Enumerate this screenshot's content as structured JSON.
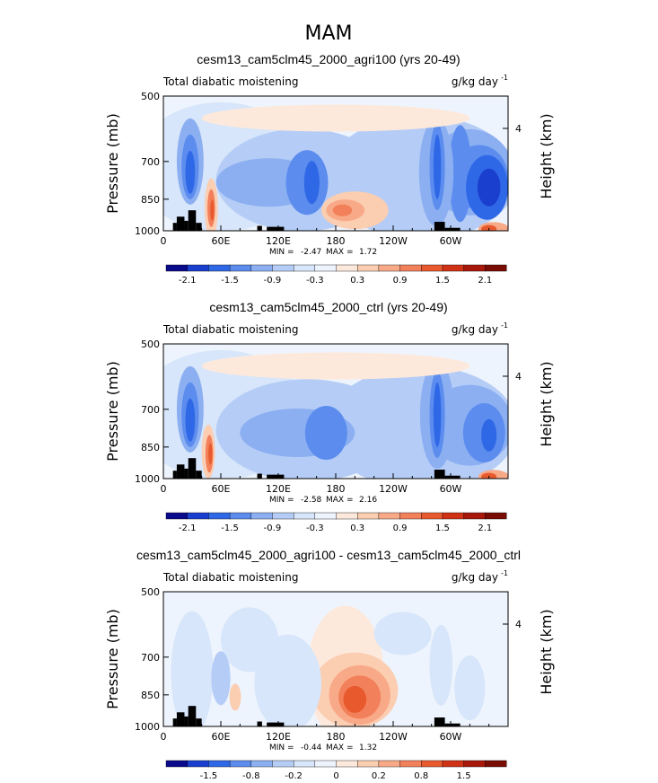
{
  "title": "MAM",
  "colorbar_colors": [
    "#0a0a8c",
    "#1a3fcf",
    "#2f68e6",
    "#5b8cee",
    "#8caff2",
    "#b5cdf6",
    "#d7e6fa",
    "#eef4fd",
    "#fde9dc",
    "#fbcdb1",
    "#f8a987",
    "#f2805a",
    "#e85a2e",
    "#cf3214",
    "#a7180a",
    "#7a0c06"
  ],
  "chart_data": [
    {
      "type": "heatmap",
      "title": "cesm13_cam5clm45_2000_agri100 (yrs 20-49)",
      "left_label": "Total diabatic moistening",
      "units": "g/kg day",
      "units_sup": "-1",
      "ylabel": "Pressure (mb)",
      "right_ylabel": "Height (km)",
      "y_ticks": [
        "500",
        "700",
        "850",
        "1000"
      ],
      "right_ticks": [
        "4"
      ],
      "x_ticks": [
        "0",
        "60E",
        "120E",
        "180",
        "120W",
        "60W"
      ],
      "min_label": "MIN =",
      "min": "-2.47",
      "max_label": "MAX =",
      "max": "1.72",
      "colorbar_ticks": [
        "-2.1",
        "-1.5",
        "-0.9",
        "-0.3",
        "0.3",
        "0.9",
        "1.5",
        "2.1"
      ],
      "xlim": [
        0,
        360
      ],
      "ylim": [
        500,
        1000
      ]
    },
    {
      "type": "heatmap",
      "title": "cesm13_cam5clm45_2000_ctrl (yrs 20-49)",
      "left_label": "Total diabatic moistening",
      "units": "g/kg day",
      "units_sup": "-1",
      "ylabel": "Pressure (mb)",
      "right_ylabel": "Height (km)",
      "y_ticks": [
        "500",
        "700",
        "850",
        "1000"
      ],
      "right_ticks": [
        "4"
      ],
      "x_ticks": [
        "0",
        "60E",
        "120E",
        "180",
        "120W",
        "60W"
      ],
      "min_label": "MIN =",
      "min": "-2.58",
      "max_label": "MAX =",
      "max": "2.16",
      "colorbar_ticks": [
        "-2.1",
        "-1.5",
        "-0.9",
        "-0.3",
        "0.3",
        "0.9",
        "1.5",
        "2.1"
      ],
      "xlim": [
        0,
        360
      ],
      "ylim": [
        500,
        1000
      ]
    },
    {
      "type": "heatmap",
      "title": "cesm13_cam5clm45_2000_agri100 - cesm13_cam5clm45_2000_ctrl",
      "left_label": "Total diabatic moistening",
      "units": "g/kg day",
      "units_sup": "-1",
      "ylabel": "Pressure (mb)",
      "right_ylabel": "Height (km)",
      "y_ticks": [
        "500",
        "700",
        "850",
        "1000"
      ],
      "right_ticks": [
        "4"
      ],
      "x_ticks": [
        "0",
        "60E",
        "120E",
        "180",
        "120W",
        "60W"
      ],
      "min_label": "MIN =",
      "min": "-0.44",
      "max_label": "MAX =",
      "max": "1.32",
      "colorbar_ticks": [
        "-1.5",
        "-0.8",
        "-0.2",
        "0",
        "0.2",
        "0.8",
        "1.5"
      ],
      "xlim": [
        0,
        360
      ],
      "ylim": [
        500,
        1000
      ]
    }
  ]
}
